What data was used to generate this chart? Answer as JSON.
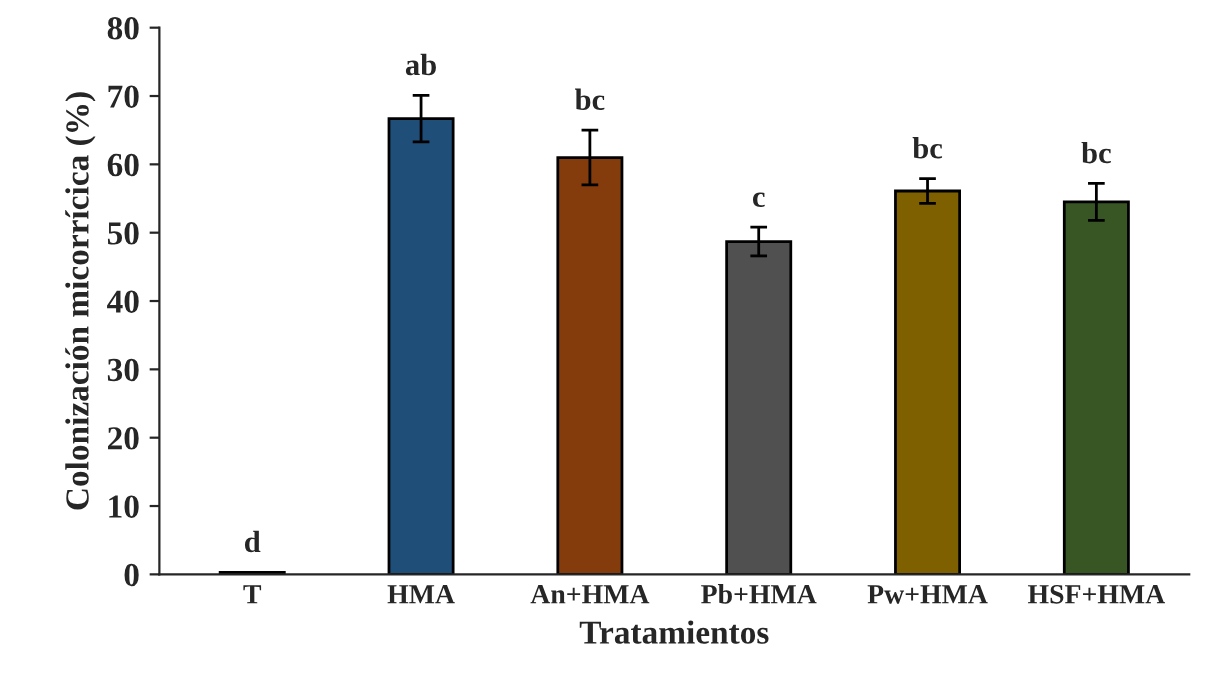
{
  "chart_data": {
    "type": "bar",
    "xlabel": "Tratamientos",
    "ylabel": "Colonización micorrícica (%)",
    "categories": [
      "T",
      "HMA",
      "An+HMA",
      "Pb+HMA",
      "Pw+HMA",
      "HSF+HMA"
    ],
    "values": [
      0.3,
      66.7,
      61,
      48.7,
      56.1,
      54.5
    ],
    "errors": [
      null,
      3.4,
      4,
      2.1,
      1.8,
      2.7
    ],
    "colors": [
      "#404040",
      "#1f4e79",
      "#843c0c",
      "#505050",
      "#7f6000",
      "#375623"
    ],
    "ylim": [
      0,
      80
    ],
    "yticks": [
      0,
      10,
      20,
      30,
      40,
      50,
      60,
      70,
      80
    ],
    "grid": false,
    "annotations": [
      {
        "text": "d",
        "x": "T",
        "y": 0.3
      },
      {
        "text": "ab",
        "x": "HMA",
        "y": 70.1
      },
      {
        "text": "bc",
        "x": "An+HMA",
        "y": 65
      },
      {
        "text": "c",
        "x": "Pb+HMA",
        "y": 50.8
      },
      {
        "text": "bc",
        "x": "Pw+HMA",
        "y": 57.9
      },
      {
        "text": "bc",
        "x": "HSF+HMA",
        "y": 57.2
      }
    ]
  }
}
